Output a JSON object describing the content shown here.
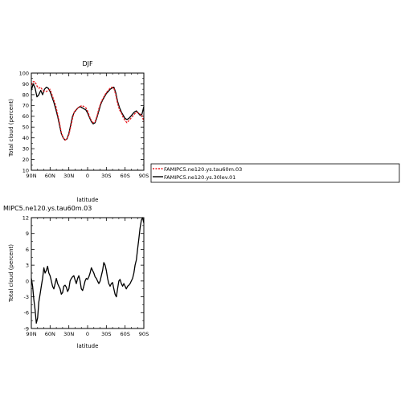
{
  "chart_data": [
    {
      "type": "line",
      "title": "DJF",
      "xlabel": "latitude",
      "ylabel": "Total cloud (percent)",
      "xlim": [
        90,
        -90
      ],
      "ylim": [
        10,
        100
      ],
      "x_ticks": [
        {
          "value": 90,
          "label": "90N"
        },
        {
          "value": 60,
          "label": "60N"
        },
        {
          "value": 30,
          "label": "30N"
        },
        {
          "value": 0,
          "label": "0"
        },
        {
          "value": -30,
          "label": "30S"
        },
        {
          "value": -60,
          "label": "60S"
        },
        {
          "value": -90,
          "label": "90S"
        }
      ],
      "y_ticks": [
        10,
        20,
        30,
        40,
        50,
        60,
        70,
        80,
        90,
        100
      ],
      "series": [
        {
          "name": "FAMIPC5.ne120.ys.tau60m.03",
          "color": "#e8191e",
          "style": "dashed",
          "x": [
            90,
            87,
            84,
            81,
            78,
            75,
            72,
            69,
            66,
            63,
            60,
            57,
            54,
            51,
            48,
            45,
            42,
            39,
            36,
            33,
            30,
            27,
            24,
            21,
            18,
            15,
            12,
            9,
            6,
            3,
            0,
            -3,
            -6,
            -9,
            -12,
            -15,
            -18,
            -21,
            -24,
            -27,
            -30,
            -33,
            -36,
            -39,
            -42,
            -45,
            -48,
            -51,
            -54,
            -57,
            -60,
            -63,
            -66,
            -69,
            -72,
            -75,
            -78,
            -81,
            -84,
            -87,
            -90
          ],
          "y": [
            89,
            92,
            92,
            88,
            86,
            87,
            84,
            83,
            83,
            84,
            85,
            80,
            75,
            70,
            62,
            54,
            45,
            40,
            38,
            39,
            43,
            50,
            58,
            65,
            66,
            68,
            69,
            70,
            69,
            68,
            65,
            60,
            56,
            54,
            55,
            60,
            67,
            72,
            76,
            79,
            82,
            84,
            86,
            87,
            86,
            80,
            72,
            66,
            63,
            59,
            56,
            54,
            56,
            58,
            60,
            62,
            64,
            63,
            62,
            61,
            55
          ]
        },
        {
          "name": "FAMIPC5.ne120.ys.30lev.01",
          "color": "#000000",
          "style": "solid",
          "x": [
            90,
            87,
            84,
            81,
            78,
            75,
            72,
            69,
            66,
            63,
            60,
            57,
            54,
            51,
            48,
            45,
            42,
            39,
            36,
            33,
            30,
            27,
            24,
            21,
            18,
            15,
            12,
            9,
            6,
            3,
            0,
            -3,
            -6,
            -9,
            -12,
            -15,
            -18,
            -21,
            -24,
            -27,
            -30,
            -33,
            -36,
            -39,
            -42,
            -45,
            -48,
            -51,
            -54,
            -57,
            -60,
            -63,
            -66,
            -69,
            -72,
            -75,
            -78,
            -81,
            -84,
            -87,
            -90
          ],
          "y": [
            84,
            90,
            86,
            78,
            80,
            84,
            80,
            85,
            87,
            86,
            83,
            78,
            73,
            67,
            60,
            52,
            44,
            40,
            38,
            39,
            44,
            52,
            60,
            64,
            66,
            68,
            69,
            68,
            67,
            66,
            63,
            59,
            55,
            53,
            54,
            59,
            65,
            71,
            75,
            78,
            81,
            83,
            85,
            86,
            87,
            82,
            74,
            68,
            64,
            61,
            58,
            57,
            58,
            60,
            62,
            64,
            65,
            63,
            61,
            62,
            69
          ]
        }
      ],
      "legend_position": "right"
    },
    {
      "type": "line",
      "title": "MIPC5.ne120.ys.tau60m.03",
      "xlabel": "latitude",
      "ylabel": "Total cloud (percent)",
      "xlim": [
        90,
        -90
      ],
      "ylim": [
        -9,
        12
      ],
      "x_ticks": [
        {
          "value": 90,
          "label": "90N"
        },
        {
          "value": 60,
          "label": "60N"
        },
        {
          "value": 30,
          "label": "30N"
        },
        {
          "value": 0,
          "label": "0"
        },
        {
          "value": -30,
          "label": "30S"
        },
        {
          "value": -60,
          "label": "60S"
        },
        {
          "value": -90,
          "label": "90S"
        }
      ],
      "y_ticks": [
        -9,
        -6,
        -3,
        0,
        3,
        6,
        9,
        12
      ],
      "series": [
        {
          "color": "#000000",
          "style": "solid",
          "x": [
            90,
            88,
            86,
            84,
            82,
            80,
            78,
            76,
            74,
            72,
            70,
            68,
            66,
            64,
            62,
            60,
            58,
            56,
            54,
            52,
            50,
            48,
            46,
            44,
            42,
            40,
            38,
            36,
            34,
            32,
            30,
            28,
            26,
            24,
            22,
            20,
            18,
            16,
            14,
            12,
            10,
            8,
            6,
            4,
            2,
            0,
            -2,
            -4,
            -6,
            -8,
            -10,
            -12,
            -14,
            -16,
            -18,
            -20,
            -22,
            -24,
            -26,
            -28,
            -30,
            -32,
            -34,
            -36,
            -38,
            -40,
            -42,
            -44,
            -46,
            -48,
            -50,
            -52,
            -54,
            -56,
            -58,
            -60,
            -62,
            -64,
            -66,
            -68,
            -70,
            -72,
            -74,
            -76,
            -78,
            -80,
            -82,
            -84,
            -86,
            -88,
            -90
          ],
          "y": [
            0.5,
            -1.0,
            -3.5,
            -5.5,
            -8.0,
            -7.0,
            -4.0,
            -2.5,
            -1.0,
            0.5,
            2.5,
            1.5,
            2.0,
            2.8,
            1.5,
            1.0,
            0.0,
            -1.0,
            -1.5,
            -0.5,
            0.5,
            -0.5,
            -1.0,
            -1.5,
            -2.5,
            -2.2,
            -1.0,
            -0.8,
            -1.2,
            -2.0,
            -1.5,
            0.0,
            0.5,
            0.8,
            1.0,
            0.2,
            -0.5,
            0.5,
            1.0,
            0.0,
            -1.5,
            -1.8,
            -1.0,
            0.0,
            0.5,
            0.3,
            0.8,
            1.5,
            2.5,
            2.0,
            1.5,
            0.8,
            0.5,
            0.0,
            -0.5,
            0.0,
            1.0,
            2.0,
            3.5,
            3.0,
            2.0,
            0.5,
            -0.5,
            -1.0,
            -0.5,
            -0.3,
            -1.5,
            -2.5,
            -3.0,
            -1.5,
            0.0,
            0.3,
            -0.5,
            -1.0,
            -0.5,
            -1.0,
            -1.5,
            -1.0,
            -0.8,
            -0.5,
            0.0,
            0.5,
            1.5,
            3.0,
            4.0,
            6.0,
            8.0,
            10.0,
            11.5,
            12.0,
            11.0
          ]
        }
      ]
    }
  ],
  "legend": {
    "entries": [
      {
        "label": "FAMIPC5.ne120.ys.tau60m.03",
        "color": "#e8191e",
        "style": "dashed"
      },
      {
        "label": "FAMIPC5.ne120.ys.30lev.01",
        "color": "#000000",
        "style": "solid"
      }
    ]
  }
}
